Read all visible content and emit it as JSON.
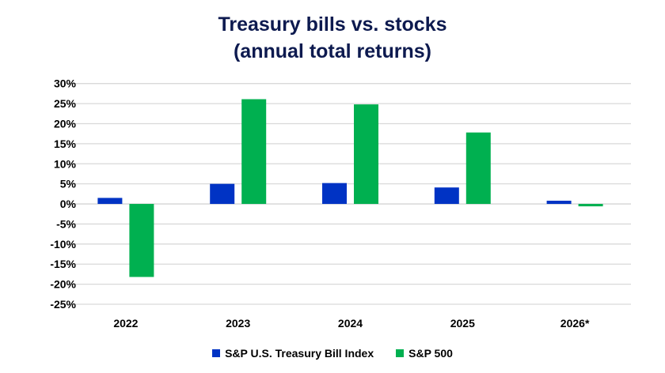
{
  "chart_data": {
    "type": "bar",
    "title": "Treasury bills vs. stocks",
    "subtitle": "(annual total returns)",
    "categories": [
      "2022",
      "2023",
      "2024",
      "2025",
      "2026*"
    ],
    "series": [
      {
        "name": "S&P U.S. Treasury Bill Index",
        "color": "#0033C4",
        "values": [
          1.5,
          5.0,
          5.2,
          4.1,
          0.8
        ]
      },
      {
        "name": "S&P 500",
        "color": "#00B050",
        "values": [
          -18.2,
          26.1,
          24.8,
          17.8,
          -0.6
        ]
      }
    ],
    "xlabel": "",
    "ylabel": "",
    "ylim": [
      -25,
      30
    ],
    "yticks": [
      30,
      25,
      20,
      15,
      10,
      5,
      0,
      -5,
      -10,
      -15,
      -20,
      -25
    ],
    "ytick_labels": [
      "30%",
      "25%",
      "20%",
      "15%",
      "10%",
      "5%",
      "0%",
      "-5%",
      "-10%",
      "-15%",
      "-20%",
      "-25%"
    ],
    "grid": true,
    "legend_position": "bottom"
  }
}
